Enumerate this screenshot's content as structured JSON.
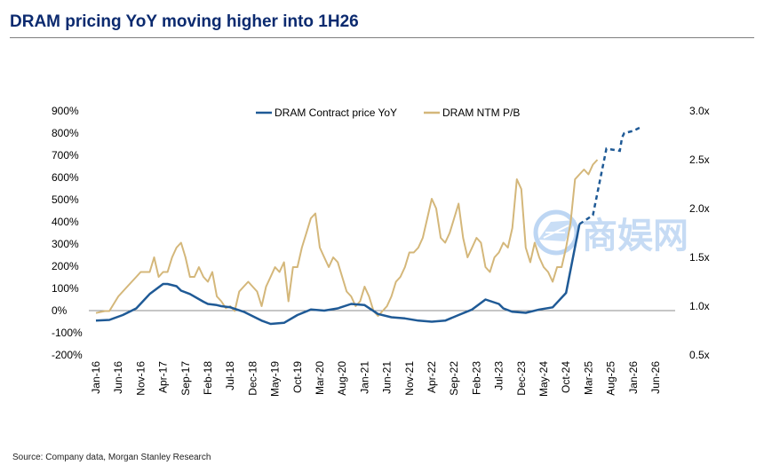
{
  "header": {
    "title": "DRAM pricing YoY moving higher into 1H26"
  },
  "footer": {
    "source": "Source: Company data, Morgan Stanley Research"
  },
  "watermark": {
    "text": "商娱网"
  },
  "colors": {
    "contract": "#1f5a96",
    "pb": "#d4b77a",
    "zero_line": "#8c8c8c",
    "title": "#0b2a6f"
  },
  "chart_data": {
    "type": "line",
    "title": "DRAM pricing YoY moving higher into 1H26",
    "x_ticks": [
      "Jan-16",
      "Jun-16",
      "Nov-16",
      "Apr-17",
      "Sep-17",
      "Feb-18",
      "Jul-18",
      "Dec-18",
      "May-19",
      "Oct-19",
      "Mar-20",
      "Aug-20",
      "Jan-21",
      "Jun-21",
      "Nov-21",
      "Apr-22",
      "Sep-22",
      "Feb-23",
      "Jul-23",
      "Dec-23",
      "May-24",
      "Oct-24",
      "Mar-25",
      "Aug-25",
      "Jan-26",
      "Jun-26"
    ],
    "left_axis": {
      "ylim": [
        -200,
        900
      ],
      "ticks": [
        "-200%",
        "-100%",
        "0%",
        "100%",
        "200%",
        "300%",
        "400%",
        "500%",
        "600%",
        "700%",
        "800%",
        "900%"
      ],
      "tick_values": [
        -200,
        -100,
        0,
        100,
        200,
        300,
        400,
        500,
        600,
        700,
        800,
        900
      ]
    },
    "right_axis": {
      "ylim": [
        0.5,
        3.0
      ],
      "ticks": [
        "0.5x",
        "1.0x",
        "1.5x",
        "2.0x",
        "2.5x",
        "3.0x"
      ],
      "tick_values": [
        0.5,
        1.0,
        1.5,
        2.0,
        2.5,
        3.0
      ]
    },
    "legend": {
      "position": "top-center"
    },
    "series": [
      {
        "name": "DRAM Contract price YoY",
        "axis": "left",
        "x_month_index": [
          0,
          3,
          6,
          9,
          12,
          15,
          16,
          18,
          19,
          21,
          24,
          25,
          27,
          28,
          30,
          33,
          36,
          37,
          39,
          42,
          45,
          48,
          51,
          54,
          57,
          60,
          63,
          66,
          69,
          72,
          75,
          78,
          81,
          84,
          87,
          90,
          91,
          93,
          96,
          99,
          102,
          105,
          108,
          111,
          114,
          117,
          117.5,
          118,
          120,
          122
        ],
        "values": [
          -45,
          -42,
          -20,
          10,
          75,
          120,
          120,
          110,
          90,
          75,
          40,
          30,
          25,
          20,
          15,
          -5,
          -35,
          -45,
          -60,
          -55,
          -20,
          5,
          0,
          10,
          30,
          25,
          -15,
          -30,
          -35,
          -45,
          -50,
          -45,
          -20,
          5,
          50,
          30,
          10,
          -5,
          -10,
          5,
          15,
          80,
          390,
          430,
          730,
          720,
          780,
          800,
          810,
          830
        ],
        "dashed_from_index": 42
      },
      {
        "name": "DRAM NTM P/B",
        "axis": "right",
        "x_month_index": [
          0,
          2,
          3,
          5,
          6,
          8,
          9,
          10,
          12,
          13,
          14,
          15,
          16,
          17,
          18,
          19,
          20,
          21,
          22,
          23,
          24,
          25,
          26,
          27,
          28,
          29,
          30,
          31,
          32,
          33,
          34,
          35,
          36,
          37,
          38,
          39,
          40,
          41,
          42,
          43,
          44,
          45,
          46,
          47,
          48,
          49,
          50,
          51,
          52,
          53,
          54,
          55,
          56,
          57,
          58,
          59,
          60,
          61,
          62,
          63,
          64,
          65,
          66,
          67,
          68,
          69,
          70,
          71,
          72,
          73,
          74,
          75,
          76,
          77,
          78,
          79,
          80,
          81,
          82,
          83,
          84,
          85,
          86,
          87,
          88,
          89,
          90,
          91,
          92,
          93,
          94,
          95,
          96,
          97,
          98,
          99,
          100,
          101,
          102,
          103,
          104,
          105,
          106,
          107,
          108,
          109,
          110,
          111,
          112
        ],
        "values": [
          0.93,
          0.95,
          0.95,
          1.1,
          1.15,
          1.25,
          1.3,
          1.35,
          1.35,
          1.5,
          1.3,
          1.35,
          1.35,
          1.5,
          1.6,
          1.65,
          1.5,
          1.3,
          1.3,
          1.4,
          1.3,
          1.25,
          1.35,
          1.1,
          1.05,
          0.98,
          1.0,
          0.95,
          1.15,
          1.2,
          1.25,
          1.2,
          1.15,
          1.0,
          1.2,
          1.3,
          1.4,
          1.35,
          1.45,
          1.05,
          1.4,
          1.4,
          1.6,
          1.75,
          1.9,
          1.95,
          1.6,
          1.5,
          1.4,
          1.5,
          1.45,
          1.3,
          1.15,
          1.1,
          1.0,
          1.05,
          1.2,
          1.1,
          0.95,
          0.9,
          0.95,
          1.0,
          1.1,
          1.25,
          1.3,
          1.4,
          1.55,
          1.55,
          1.6,
          1.7,
          1.9,
          2.1,
          2.0,
          1.7,
          1.65,
          1.75,
          1.9,
          2.05,
          1.7,
          1.5,
          1.6,
          1.7,
          1.65,
          1.4,
          1.35,
          1.5,
          1.55,
          1.65,
          1.6,
          1.8,
          2.3,
          2.2,
          1.6,
          1.45,
          1.65,
          1.5,
          1.4,
          1.35,
          1.25,
          1.4,
          1.4,
          1.6,
          1.85,
          2.3,
          2.35,
          2.4,
          2.35,
          2.45,
          2.5
        ]
      }
    ]
  }
}
